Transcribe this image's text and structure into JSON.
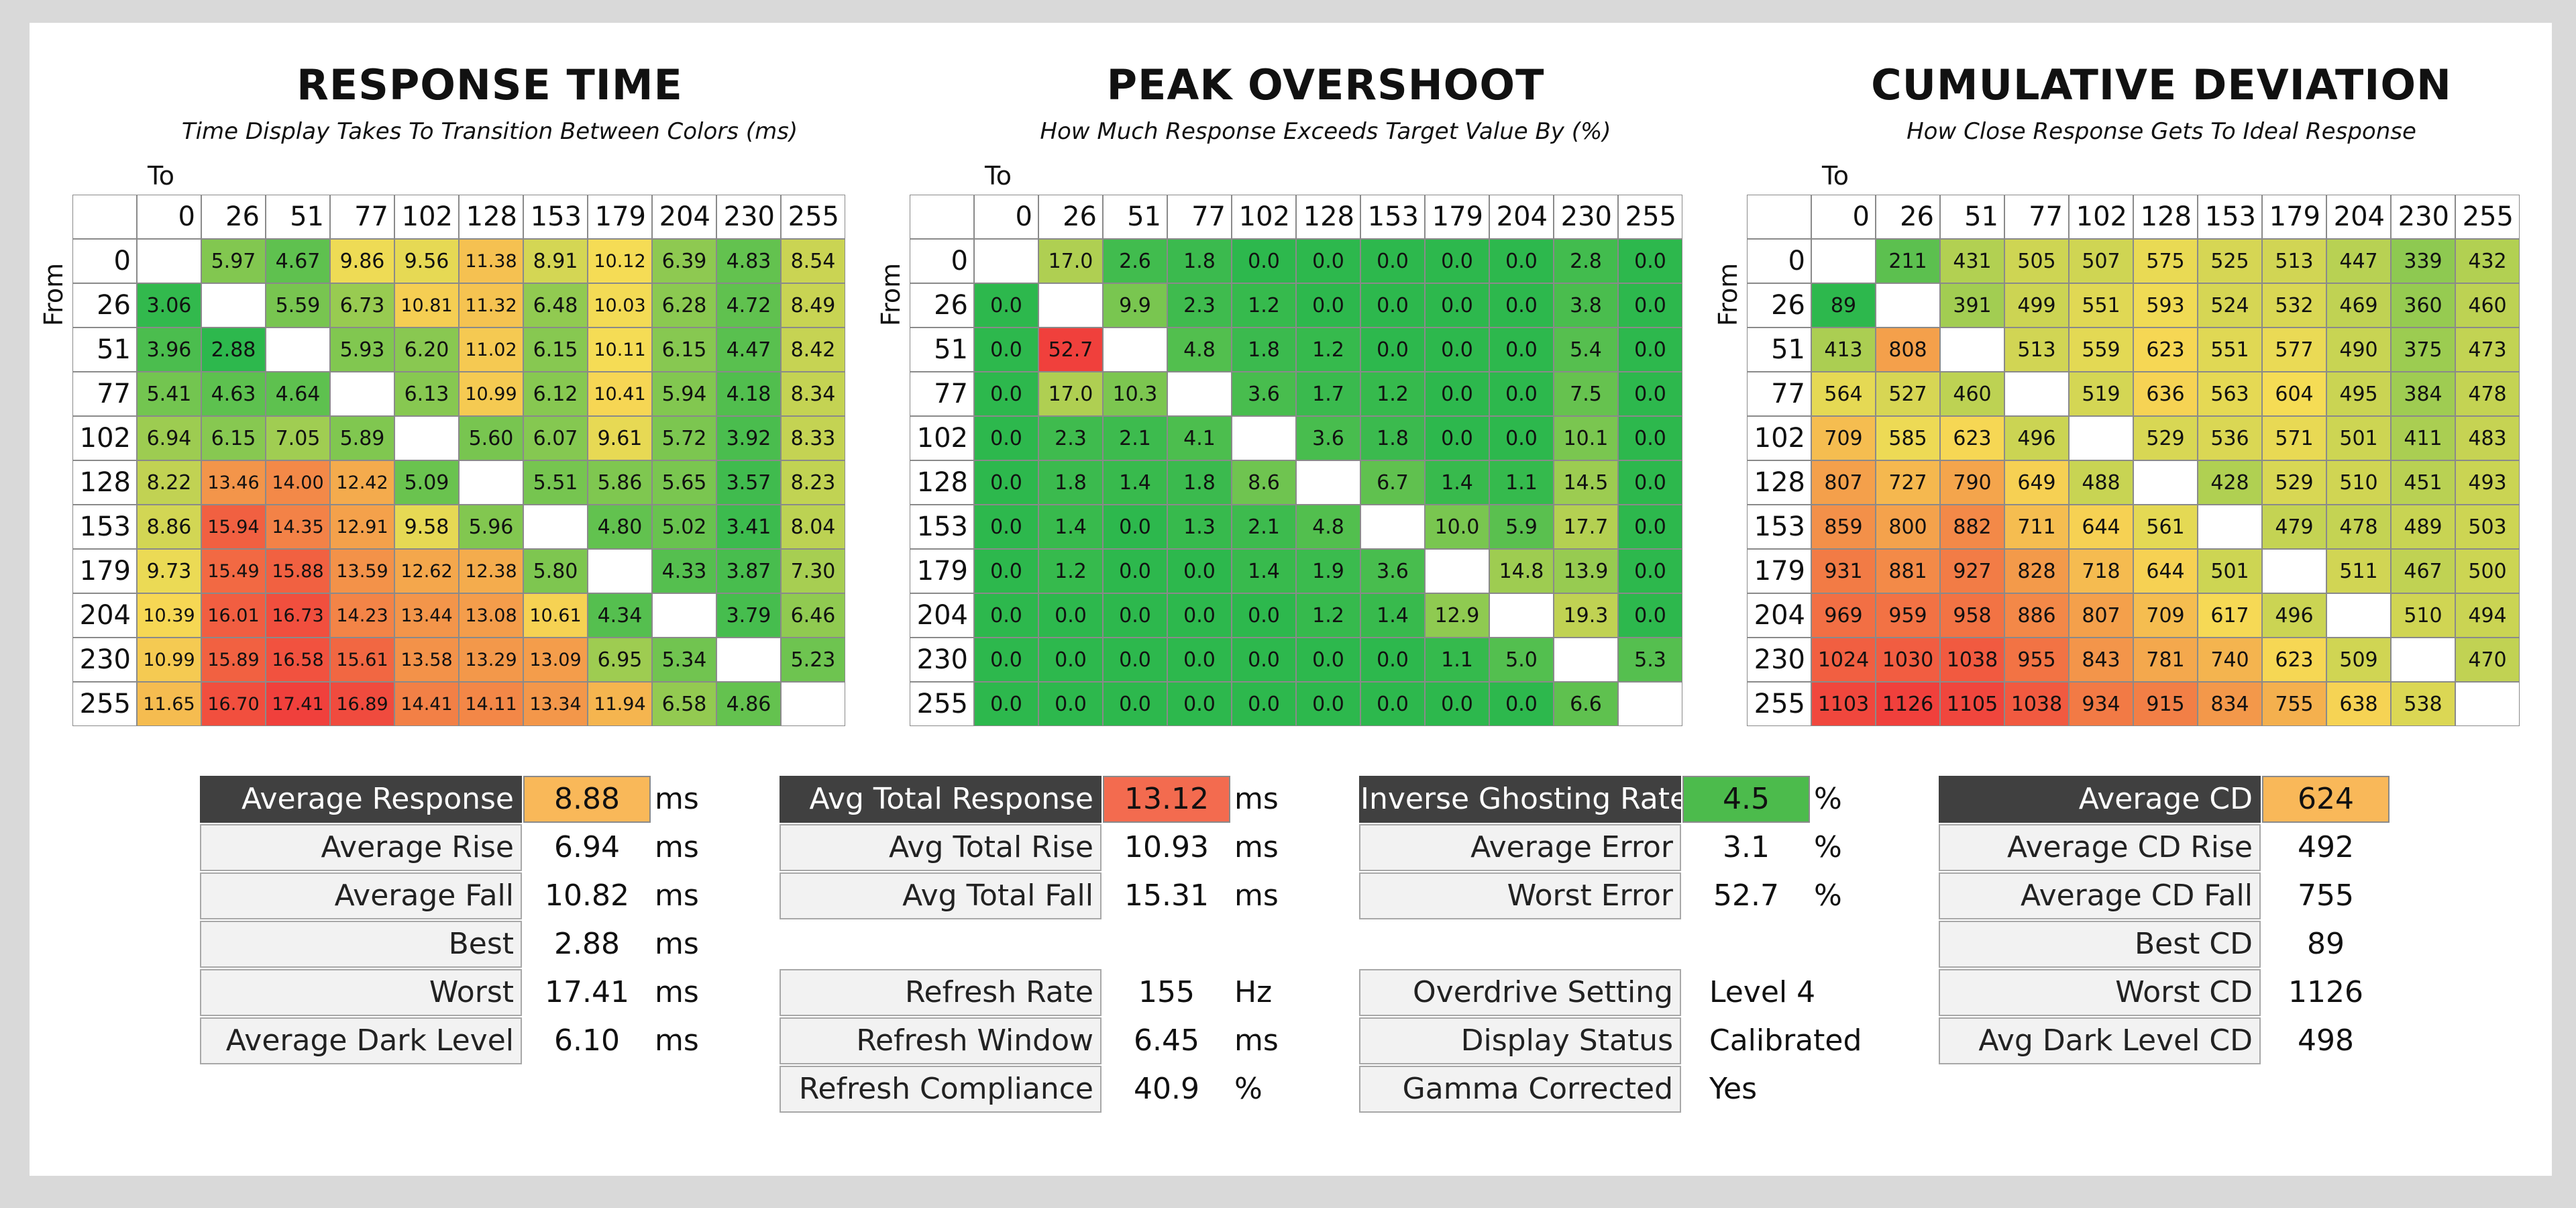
{
  "chart_data": [
    {
      "type": "heatmap",
      "title": "RESPONSE TIME",
      "subtitle": "Time Display Takes To Transition Between Colors (ms)",
      "x_label": "To",
      "y_label": "From",
      "x": [
        "0",
        "26",
        "51",
        "77",
        "102",
        "128",
        "153",
        "179",
        "204",
        "230",
        "255"
      ],
      "y": [
        "0",
        "26",
        "51",
        "77",
        "102",
        "128",
        "153",
        "179",
        "204",
        "230",
        "255"
      ],
      "values": [
        [
          null,
          "5.97",
          "4.67",
          "9.86",
          "9.56",
          "11.38",
          "8.91",
          "10.12",
          "6.39",
          "4.83",
          "8.54"
        ],
        [
          "3.06",
          null,
          "5.59",
          "6.73",
          "10.81",
          "11.32",
          "6.48",
          "10.03",
          "6.28",
          "4.72",
          "8.49"
        ],
        [
          "3.96",
          "2.88",
          null,
          "5.93",
          "6.20",
          "11.02",
          "6.15",
          "10.11",
          "6.15",
          "4.47",
          "8.42"
        ],
        [
          "5.41",
          "4.63",
          "4.64",
          null,
          "6.13",
          "10.99",
          "6.12",
          "10.41",
          "5.94",
          "4.18",
          "8.34"
        ],
        [
          "6.94",
          "6.15",
          "7.05",
          "5.89",
          null,
          "5.60",
          "6.07",
          "9.61",
          "5.72",
          "3.92",
          "8.33"
        ],
        [
          "8.22",
          "13.46",
          "14.00",
          "12.42",
          "5.09",
          null,
          "5.51",
          "5.86",
          "5.65",
          "3.57",
          "8.23"
        ],
        [
          "8.86",
          "15.94",
          "14.35",
          "12.91",
          "9.58",
          "5.96",
          null,
          "4.80",
          "5.02",
          "3.41",
          "8.04"
        ],
        [
          "9.73",
          "15.49",
          "15.88",
          "13.59",
          "12.62",
          "12.38",
          "5.80",
          null,
          "4.33",
          "3.87",
          "7.30"
        ],
        [
          "10.39",
          "16.01",
          "16.73",
          "14.23",
          "13.44",
          "13.08",
          "10.61",
          "4.34",
          null,
          "3.79",
          "6.46"
        ],
        [
          "10.99",
          "15.89",
          "16.58",
          "15.61",
          "13.58",
          "13.29",
          "13.09",
          "6.95",
          "5.34",
          null,
          "5.23"
        ],
        [
          "11.65",
          "16.70",
          "17.41",
          "16.89",
          "14.41",
          "14.11",
          "13.34",
          "11.94",
          "6.58",
          "4.86",
          null
        ]
      ],
      "color_range": [
        2.88,
        17.41
      ],
      "colors": {
        "low": "#2db84d",
        "mid": "#f6dc55",
        "high": "#f0403c"
      }
    },
    {
      "type": "heatmap",
      "title": "PEAK OVERSHOOT",
      "subtitle": "How Much Response Exceeds Target Value By (%)",
      "x_label": "To",
      "y_label": "From",
      "x": [
        "0",
        "26",
        "51",
        "77",
        "102",
        "128",
        "153",
        "179",
        "204",
        "230",
        "255"
      ],
      "y": [
        "0",
        "26",
        "51",
        "77",
        "102",
        "128",
        "153",
        "179",
        "204",
        "230",
        "255"
      ],
      "values": [
        [
          null,
          "17.0",
          "2.6",
          "1.8",
          "0.0",
          "0.0",
          "0.0",
          "0.0",
          "0.0",
          "2.8",
          "0.0"
        ],
        [
          "0.0",
          null,
          "9.9",
          "2.3",
          "1.2",
          "0.0",
          "0.0",
          "0.0",
          "0.0",
          "3.8",
          "0.0"
        ],
        [
          "0.0",
          "52.7",
          null,
          "4.8",
          "1.8",
          "1.2",
          "0.0",
          "0.0",
          "0.0",
          "5.4",
          "0.0"
        ],
        [
          "0.0",
          "17.0",
          "10.3",
          null,
          "3.6",
          "1.7",
          "1.2",
          "0.0",
          "0.0",
          "7.5",
          "0.0"
        ],
        [
          "0.0",
          "2.3",
          "2.1",
          "4.1",
          null,
          "3.6",
          "1.8",
          "0.0",
          "0.0",
          "10.1",
          "0.0"
        ],
        [
          "0.0",
          "1.8",
          "1.4",
          "1.8",
          "8.6",
          null,
          "6.7",
          "1.4",
          "1.1",
          "14.5",
          "0.0"
        ],
        [
          "0.0",
          "1.4",
          "0.0",
          "1.3",
          "2.1",
          "4.8",
          null,
          "10.0",
          "5.9",
          "17.7",
          "0.0"
        ],
        [
          "0.0",
          "1.2",
          "0.0",
          "0.0",
          "1.4",
          "1.9",
          "3.6",
          null,
          "14.8",
          "13.9",
          "0.0"
        ],
        [
          "0.0",
          "0.0",
          "0.0",
          "0.0",
          "0.0",
          "1.2",
          "1.4",
          "12.9",
          null,
          "19.3",
          "0.0"
        ],
        [
          "0.0",
          "0.0",
          "0.0",
          "0.0",
          "0.0",
          "0.0",
          "0.0",
          "1.1",
          "5.0",
          null,
          "5.3"
        ],
        [
          "0.0",
          "0.0",
          "0.0",
          "0.0",
          "0.0",
          "0.0",
          "0.0",
          "0.0",
          "0.0",
          "6.6",
          null
        ]
      ],
      "color_range": [
        0,
        52.7
      ],
      "colors": {
        "low": "#2db84d",
        "mid": "#f6dc55",
        "high": "#f0403c"
      }
    },
    {
      "type": "heatmap",
      "title": "CUMULATIVE DEVIATION",
      "subtitle": "How Close Response Gets To Ideal Response",
      "x_label": "To",
      "y_label": "From",
      "x": [
        "0",
        "26",
        "51",
        "77",
        "102",
        "128",
        "153",
        "179",
        "204",
        "230",
        "255"
      ],
      "y": [
        "0",
        "26",
        "51",
        "77",
        "102",
        "128",
        "153",
        "179",
        "204",
        "230",
        "255"
      ],
      "values": [
        [
          null,
          "211",
          "431",
          "505",
          "507",
          "575",
          "525",
          "513",
          "447",
          "339",
          "432"
        ],
        [
          "89",
          null,
          "391",
          "499",
          "551",
          "593",
          "524",
          "532",
          "469",
          "360",
          "460"
        ],
        [
          "413",
          "808",
          null,
          "513",
          "559",
          "623",
          "551",
          "577",
          "490",
          "375",
          "473"
        ],
        [
          "564",
          "527",
          "460",
          null,
          "519",
          "636",
          "563",
          "604",
          "495",
          "384",
          "478"
        ],
        [
          "709",
          "585",
          "623",
          "496",
          null,
          "529",
          "536",
          "571",
          "501",
          "411",
          "483"
        ],
        [
          "807",
          "727",
          "790",
          "649",
          "488",
          null,
          "428",
          "529",
          "510",
          "451",
          "493"
        ],
        [
          "859",
          "800",
          "882",
          "711",
          "644",
          "561",
          null,
          "479",
          "478",
          "489",
          "503"
        ],
        [
          "931",
          "881",
          "927",
          "828",
          "718",
          "644",
          "501",
          null,
          "511",
          "467",
          "500"
        ],
        [
          "969",
          "959",
          "958",
          "886",
          "807",
          "709",
          "617",
          "496",
          null,
          "510",
          "494"
        ],
        [
          "1024",
          "1030",
          "1038",
          "955",
          "843",
          "781",
          "740",
          "623",
          "509",
          null,
          "470"
        ],
        [
          "1103",
          "1126",
          "1105",
          "1038",
          "934",
          "915",
          "834",
          "755",
          "638",
          "538",
          null
        ]
      ],
      "color_range": [
        89,
        1126
      ],
      "colors": {
        "low": "#2db84d",
        "mid": "#f6dc55",
        "high": "#f0403c"
      }
    }
  ],
  "stats": {
    "response": [
      {
        "label": "Average Response",
        "value": "8.88",
        "unit": "ms",
        "highlight": true,
        "color": "#f9b859"
      },
      {
        "label": "Average Rise",
        "value": "6.94",
        "unit": "ms"
      },
      {
        "label": "Average Fall",
        "value": "10.82",
        "unit": "ms"
      },
      {
        "label": "Best",
        "value": "2.88",
        "unit": "ms"
      },
      {
        "label": "Worst",
        "value": "17.41",
        "unit": "ms"
      },
      {
        "label": "Average Dark Level",
        "value": "6.10",
        "unit": "ms"
      }
    ],
    "total": [
      {
        "label": "Avg Total Response",
        "value": "13.12",
        "unit": "ms",
        "highlight": true,
        "color": "#f36b4f"
      },
      {
        "label": "Avg Total Rise",
        "value": "10.93",
        "unit": "ms"
      },
      {
        "label": "Avg Total Fall",
        "value": "15.31",
        "unit": "ms"
      }
    ],
    "refresh": [
      {
        "label": "Refresh Rate",
        "value": "155",
        "unit": "Hz"
      },
      {
        "label": "Refresh Window",
        "value": "6.45",
        "unit": "ms"
      },
      {
        "label": "Refresh Compliance",
        "value": "40.9",
        "unit": "%"
      }
    ],
    "overshoot": [
      {
        "label": "Inverse Ghosting Rate",
        "value": "4.5",
        "unit": "%",
        "highlight": true,
        "color": "#4cbb4c"
      },
      {
        "label": "Average Error",
        "value": "3.1",
        "unit": "%"
      },
      {
        "label": "Worst Error",
        "value": "52.7",
        "unit": "%"
      }
    ],
    "settings": [
      {
        "label": "Overdrive Setting",
        "value": "Level 4"
      },
      {
        "label": "Display Status",
        "value": "Calibrated"
      },
      {
        "label": "Gamma Corrected",
        "value": "Yes"
      }
    ],
    "cd": [
      {
        "label": "Average CD",
        "value": "624",
        "highlight": true,
        "color": "#f9b859"
      },
      {
        "label": "Average CD Rise",
        "value": "492"
      },
      {
        "label": "Average CD Fall",
        "value": "755"
      },
      {
        "label": "Best CD",
        "value": "89"
      },
      {
        "label": "Worst CD",
        "value": "1126"
      },
      {
        "label": "Avg Dark Level CD",
        "value": "498"
      }
    ]
  }
}
